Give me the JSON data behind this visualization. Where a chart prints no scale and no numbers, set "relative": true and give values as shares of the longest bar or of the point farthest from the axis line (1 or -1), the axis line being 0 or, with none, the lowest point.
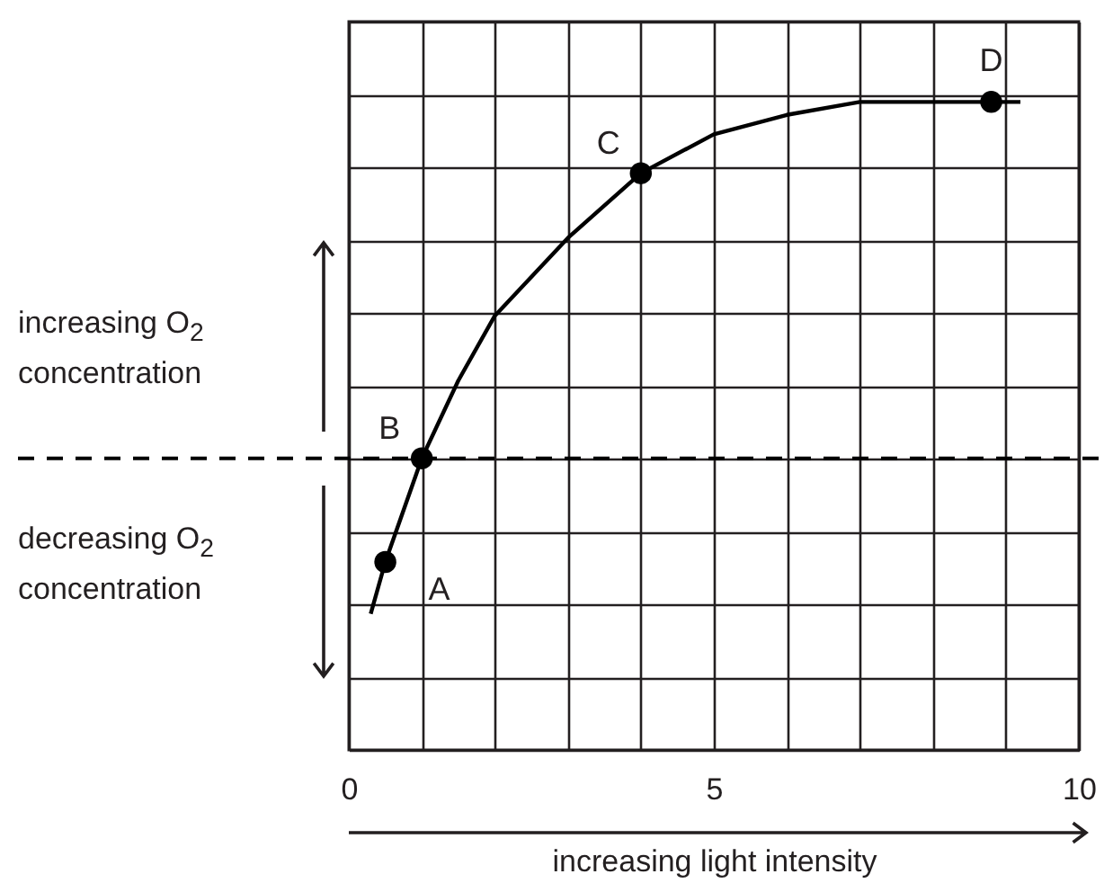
{
  "chart_data": {
    "type": "line",
    "relative": true,
    "xlabel": "increasing light intensity",
    "xlim": [
      0,
      10
    ],
    "xticks": [
      0,
      {
        "value": 1,
        "label": null
      },
      {
        "value": 2,
        "label": null
      },
      {
        "value": 3,
        "label": null
      },
      {
        "value": 4,
        "label": null
      },
      5,
      {
        "value": 6,
        "label": null
      },
      {
        "value": 7,
        "label": null
      },
      {
        "value": 8,
        "label": null
      },
      {
        "value": 9,
        "label": null
      },
      10
    ],
    "grid": true,
    "series": [
      {
        "color": "#000000",
        "marker": "none",
        "x": [
          0.3,
          0.5,
          1,
          1.5,
          2,
          3,
          4,
          5,
          6,
          7,
          8.8,
          9.2
        ],
        "values": [
          0.21,
          0.29,
          0.45,
          0.57,
          0.67,
          0.79,
          0.89,
          0.95,
          0.98,
          1,
          1,
          1
        ]
      }
    ],
    "ref_lines": [
      {
        "axis": "y",
        "value": 0.45,
        "line_style": "dashed",
        "color": "#000000"
      }
    ],
    "annotations": [
      {
        "text": "A",
        "x": 0.5,
        "y": 0.29
      },
      {
        "text": "B",
        "x": 1,
        "y": 0.45
      },
      {
        "text": "C",
        "x": 4,
        "y": 0.89
      },
      {
        "text": "D",
        "x": 8.8,
        "y": 1
      },
      "increasing O$_{2}$ concentration",
      "decreasing O$_{2}$ concentration"
    ]
  }
}
